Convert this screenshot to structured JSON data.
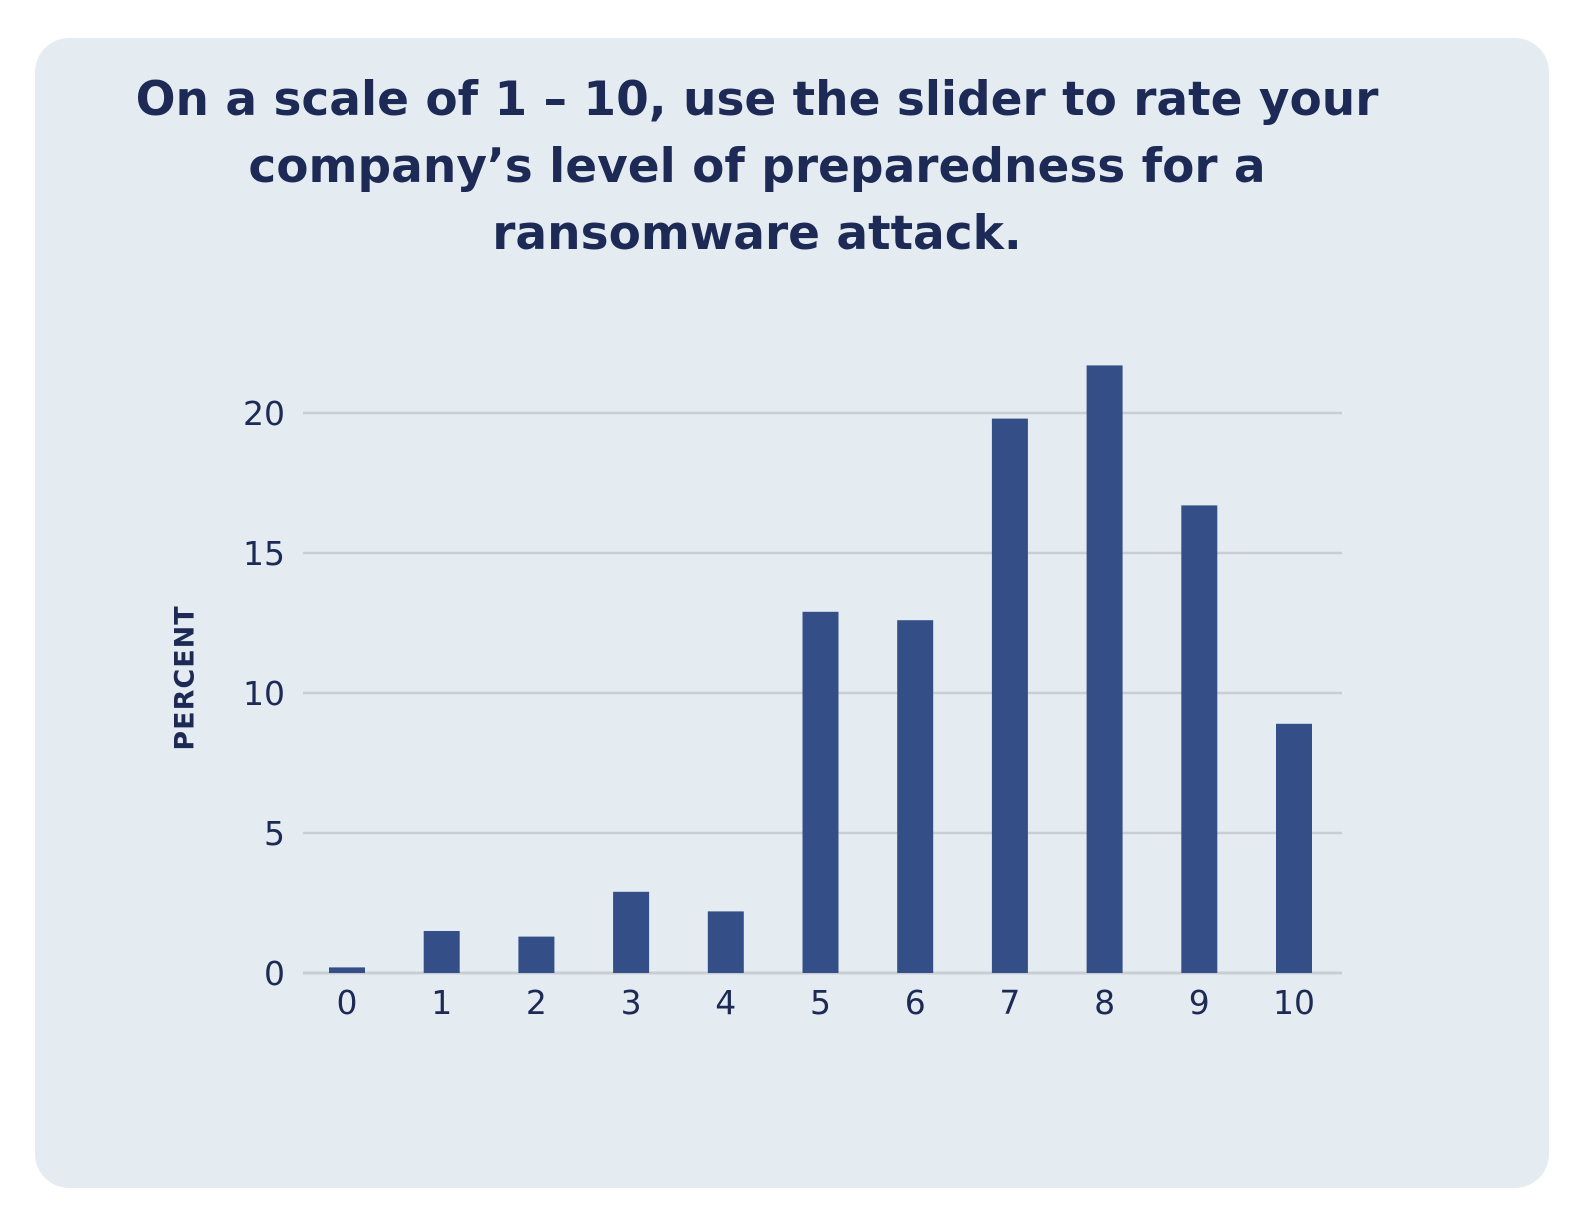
{
  "card": {
    "background": "#e5ecf1"
  },
  "chart_data": {
    "type": "bar",
    "title": "On a scale of 1 – 10, use the slider to rate your company’s level of preparedness for a ransomware attack.",
    "xlabel": "",
    "ylabel": "PERCENT",
    "categories": [
      "0",
      "1",
      "2",
      "3",
      "4",
      "5",
      "6",
      "7",
      "8",
      "9",
      "10"
    ],
    "values": [
      0.2,
      1.5,
      1.3,
      2.9,
      2.2,
      12.9,
      12.6,
      19.8,
      21.7,
      16.7,
      8.9
    ],
    "ylim": [
      0,
      20
    ],
    "yticks": [
      0,
      5,
      10,
      15,
      20
    ],
    "grid": true,
    "legend": "none",
    "colors": {
      "bar": "#344f87",
      "grid": "#c9ced5",
      "text": "#1c2a55"
    }
  }
}
